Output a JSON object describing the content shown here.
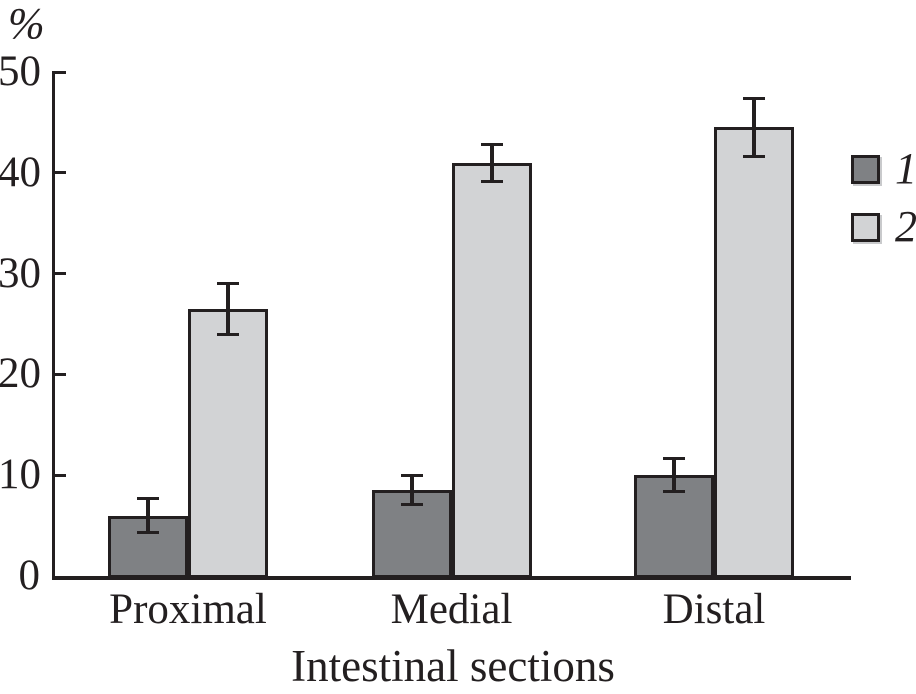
{
  "figure": {
    "y_axis_unit_label": "%",
    "x_axis_title": "Intestinal sections"
  },
  "legend": {
    "position": "right",
    "items": [
      {
        "label": "1",
        "color": "#7f8184"
      },
      {
        "label": "2",
        "color": "#d2d3d5"
      }
    ]
  },
  "chart_data": {
    "type": "bar",
    "title": "",
    "xlabel": "Intestinal sections",
    "ylabel": "%",
    "categories": [
      "Proximal",
      "Medial",
      "Distal"
    ],
    "series": [
      {
        "name": "1",
        "values": [
          6,
          8.5,
          10
        ],
        "errors": [
          1.7,
          1.5,
          1.7
        ],
        "color": "#7f8184"
      },
      {
        "name": "2",
        "values": [
          26.5,
          41,
          44.5
        ],
        "errors": [
          2.6,
          1.9,
          2.9
        ],
        "color": "#d2d3d5"
      }
    ],
    "ylim": [
      0,
      50
    ],
    "yticks": [
      0,
      10,
      20,
      30,
      40,
      50
    ],
    "grid": false,
    "legend_position": "right",
    "bar_outline_color": "#231f20",
    "error_bar_color": "#231f20",
    "axis_color": "#231f20"
  }
}
